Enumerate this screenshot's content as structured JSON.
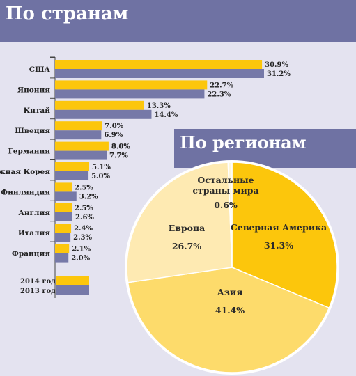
{
  "country_title": "По странам",
  "region_title": "По регионам",
  "colors": {
    "header": "#6f72a3",
    "background": "#e4e3f0",
    "y2014": "#fcc60c",
    "y2013": "#7679a8",
    "pie_na": "#fcc60c",
    "pie_asia": "#fddb6b",
    "pie_europe": "#feeab2",
    "pie_other": "#fff7dc"
  },
  "chart_data": [
    {
      "type": "bar",
      "orientation": "horizontal",
      "title": "По странам",
      "categories": [
        "США",
        "Япония",
        "Китай",
        "Швеция",
        "Германия",
        "Южная Корея",
        "Финляндия",
        "Англия",
        "Италия",
        "Франция"
      ],
      "series": [
        {
          "name": "2014 год",
          "values": [
            30.9,
            22.7,
            13.3,
            7.0,
            8.0,
            5.1,
            2.5,
            2.5,
            2.4,
            2.1
          ],
          "labels": [
            "30.9%",
            "22.7%",
            "13.3%",
            "7.0%",
            "8.0%",
            "5.1%",
            "2.5%",
            "2.5%",
            "2.4%",
            "2.1%"
          ]
        },
        {
          "name": "2013 год",
          "values": [
            31.2,
            22.3,
            14.4,
            6.9,
            7.7,
            5.0,
            3.2,
            2.6,
            2.3,
            2.0
          ],
          "labels": [
            "31.2%",
            "22.3%",
            "14.4%",
            "6.9%",
            "7.7%",
            "5.0%",
            "3.2%",
            "2.6%",
            "2.3%",
            "2.0%"
          ]
        }
      ],
      "xlim": [
        0,
        31.2
      ],
      "legend": "bottom-left"
    },
    {
      "type": "pie",
      "title": "По регионам",
      "slices": [
        {
          "label": [
            "Северная Америка"
          ],
          "value": 31.3,
          "value_label": "31.3%",
          "color": "#fcc60c"
        },
        {
          "label": [
            "Азия"
          ],
          "value": 41.4,
          "value_label": "41.4%",
          "color": "#fddb6b"
        },
        {
          "label": [
            "Европа"
          ],
          "value": 26.7,
          "value_label": "26.7%",
          "color": "#feeab2"
        },
        {
          "label": [
            "Остальные",
            "страны мира"
          ],
          "value": 0.6,
          "value_label": "0.6%",
          "color": "#fff7dc"
        }
      ]
    }
  ]
}
